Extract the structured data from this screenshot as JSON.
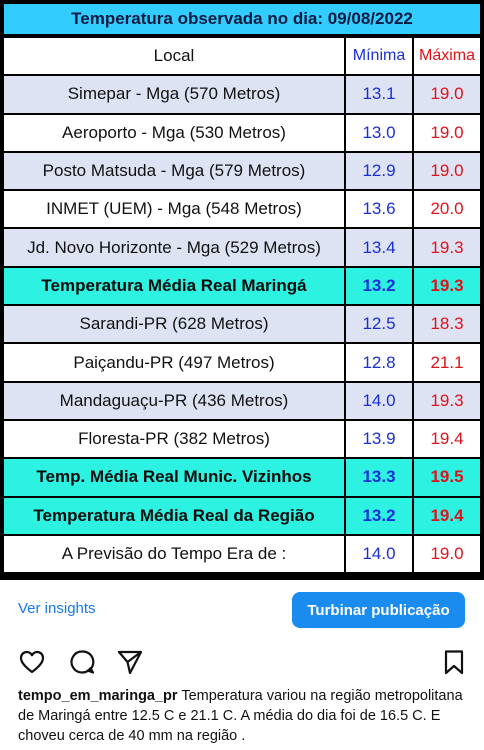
{
  "table": {
    "title": "Temperatura observada no dia: 09/08/2022",
    "headers": {
      "local": "Local",
      "min": "Mínima",
      "max": "Máxima"
    },
    "rows": [
      {
        "local": "Simepar - Mga  (570 Metros)",
        "min": "13.1",
        "max": "19.0",
        "style": "alt"
      },
      {
        "local": "Aeroporto - Mga (530 Metros)",
        "min": "13.0",
        "max": "19.0",
        "style": "plain"
      },
      {
        "local": "Posto Matsuda - Mga (579 Metros)",
        "min": "12.9",
        "max": "19.0",
        "style": "alt"
      },
      {
        "local": "INMET (UEM) - Mga  (548 Metros)",
        "min": "13.6",
        "max": "20.0",
        "style": "plain"
      },
      {
        "local": "Jd. Novo Horizonte - Mga (529 Metros)",
        "min": "13.4",
        "max": "19.3",
        "style": "alt"
      },
      {
        "local": "Temperatura Média Real Maringá",
        "min": "13.2",
        "max": "19.3",
        "style": "highlight"
      },
      {
        "local": "Sarandi-PR  (628 Metros)",
        "min": "12.5",
        "max": "18.3",
        "style": "alt"
      },
      {
        "local": "Paiçandu-PR (497 Metros)",
        "min": "12.8",
        "max": "21.1",
        "style": "plain"
      },
      {
        "local": "Mandaguaçu-PR (436 Metros)",
        "min": "14.0",
        "max": "19.3",
        "style": "alt"
      },
      {
        "local": "Floresta-PR (382 Metros)",
        "min": "13.9",
        "max": "19.4",
        "style": "plain"
      },
      {
        "local": "Temp. Média Real Munic. Vizinhos",
        "min": "13.3",
        "max": "19.5",
        "style": "highlight"
      },
      {
        "local": "Temperatura Média Real da Região",
        "min": "13.2",
        "max": "19.4",
        "style": "highlight"
      },
      {
        "local": "A Previsão do Tempo Era de :",
        "min": "14.0",
        "max": "19.0",
        "style": "plain"
      }
    ]
  },
  "actions": {
    "insights_label": "Ver insights",
    "boost_label": "Turbinar publicação"
  },
  "icons": [
    "heart-icon",
    "comment-icon",
    "share-icon",
    "bookmark-icon"
  ],
  "caption": {
    "username": "tempo_em_maringa_pr",
    "text": " Temperatura variou na região metropolitana de Maringá entre  12.5 C e 21.1 C. A média do dia foi de 16.5 C. E choveu cerca de 40 mm na região ."
  }
}
